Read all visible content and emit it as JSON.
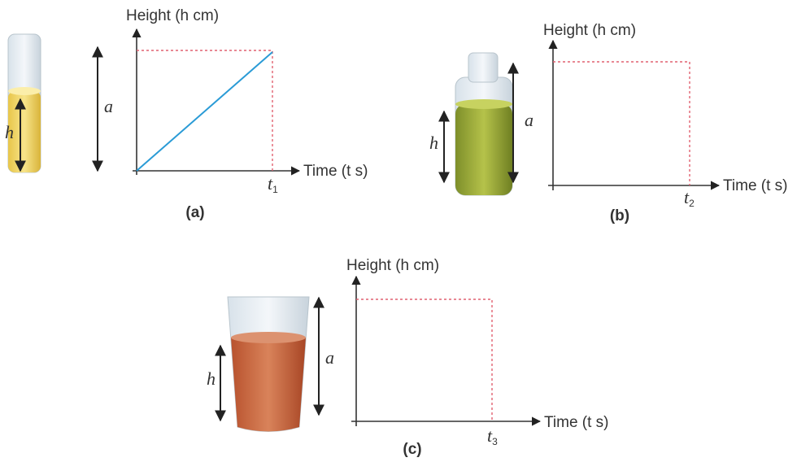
{
  "panels": [
    {
      "caption": "(a)",
      "y_axis_label": "Height (h cm)",
      "x_axis_label": "Time (t s)",
      "time_tick": {
        "base": "t",
        "subscript": "1"
      },
      "height_label": "h",
      "container_height_label": "a"
    },
    {
      "caption": "(b)",
      "y_axis_label": "Height (h cm)",
      "x_axis_label": "Time (t s)",
      "time_tick": {
        "base": "t",
        "subscript": "2"
      },
      "height_label": "h",
      "container_height_label": "a"
    },
    {
      "caption": "(c)",
      "y_axis_label": "Height (h cm)",
      "x_axis_label": "Time (t s)",
      "time_tick": {
        "base": "t",
        "subscript": "3"
      },
      "height_label": "h",
      "container_height_label": "a"
    }
  ]
}
